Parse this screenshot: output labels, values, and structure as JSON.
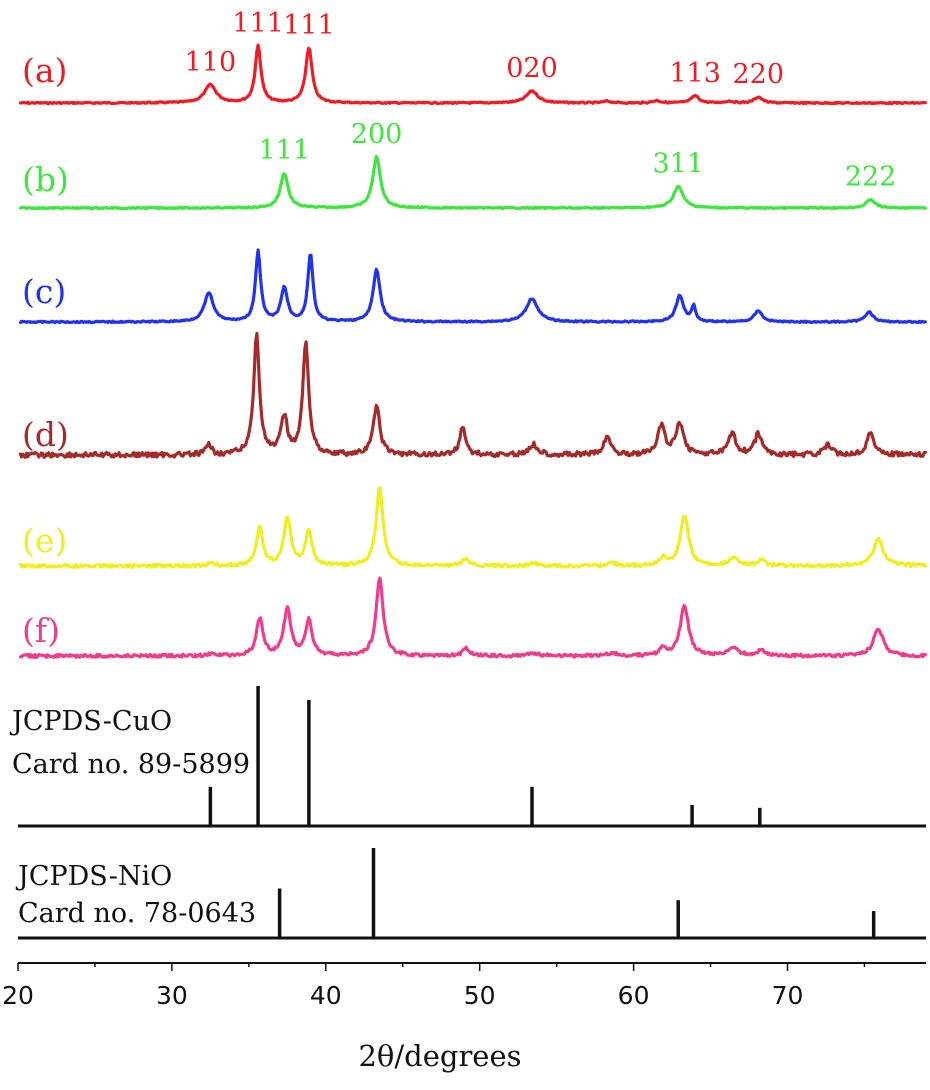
{
  "chart_data": {
    "type": "line",
    "title": "",
    "xlabel": "2θ/degrees",
    "ylabel": "",
    "xlim": [
      20,
      79
    ],
    "xticks": [
      20,
      30,
      40,
      50,
      60,
      70
    ],
    "grid": false,
    "series": [
      {
        "label": "(a)",
        "color": "#ee1c24",
        "peaks": [
          {
            "x": 32.5,
            "h": 0.3,
            "w": 0.9,
            "label": "110"
          },
          {
            "x": 35.6,
            "h": 0.95,
            "w": 0.45,
            "label": "111"
          },
          {
            "x": 38.9,
            "h": 0.92,
            "w": 0.5,
            "label": "111"
          },
          {
            "x": 53.4,
            "h": 0.2,
            "w": 0.9,
            "label": "020"
          },
          {
            "x": 58.3,
            "h": 0.03,
            "w": 0.6
          },
          {
            "x": 61.5,
            "h": 0.04,
            "w": 0.6
          },
          {
            "x": 66.2,
            "h": 0.03,
            "w": 0.6
          },
          {
            "x": 64.0,
            "h": 0.12,
            "w": 0.6,
            "label": "113"
          },
          {
            "x": 68.1,
            "h": 0.1,
            "w": 0.6,
            "label": "220"
          }
        ]
      },
      {
        "label": "(b)",
        "color": "#3ee63e",
        "peaks": [
          {
            "x": 37.3,
            "h": 0.58,
            "w": 0.6,
            "label": "111"
          },
          {
            "x": 43.3,
            "h": 0.85,
            "w": 0.6,
            "label": "200"
          },
          {
            "x": 62.9,
            "h": 0.36,
            "w": 0.75,
            "label": "311"
          },
          {
            "x": 75.4,
            "h": 0.14,
            "w": 0.7,
            "label": "222"
          }
        ]
      },
      {
        "label": "(c)",
        "color": "#2233ee",
        "peaks": [
          {
            "x": 32.4,
            "h": 0.55,
            "w": 0.7
          },
          {
            "x": 35.6,
            "h": 1.35,
            "w": 0.4
          },
          {
            "x": 37.3,
            "h": 0.65,
            "w": 0.5
          },
          {
            "x": 39.0,
            "h": 1.3,
            "w": 0.4
          },
          {
            "x": 43.3,
            "h": 1.0,
            "w": 0.55
          },
          {
            "x": 53.4,
            "h": 0.45,
            "w": 0.9
          },
          {
            "x": 63.0,
            "h": 0.5,
            "w": 0.6
          },
          {
            "x": 63.9,
            "h": 0.3,
            "w": 0.3
          },
          {
            "x": 68.1,
            "h": 0.22,
            "w": 0.6
          },
          {
            "x": 75.3,
            "h": 0.2,
            "w": 0.6
          }
        ]
      },
      {
        "label": "(d)",
        "color": "#a52a2a",
        "peaks": [
          {
            "x": 32.4,
            "h": 0.2,
            "w": 0.4
          },
          {
            "x": 35.5,
            "h": 2.3,
            "w": 0.45
          },
          {
            "x": 37.3,
            "h": 0.7,
            "w": 0.5
          },
          {
            "x": 38.7,
            "h": 2.18,
            "w": 0.45
          },
          {
            "x": 43.3,
            "h": 0.95,
            "w": 0.5
          },
          {
            "x": 48.9,
            "h": 0.55,
            "w": 0.45
          },
          {
            "x": 53.5,
            "h": 0.2,
            "w": 0.7
          },
          {
            "x": 58.3,
            "h": 0.35,
            "w": 0.55
          },
          {
            "x": 61.8,
            "h": 0.55,
            "w": 0.55
          },
          {
            "x": 63.0,
            "h": 0.6,
            "w": 0.6
          },
          {
            "x": 66.4,
            "h": 0.4,
            "w": 0.6
          },
          {
            "x": 68.1,
            "h": 0.4,
            "w": 0.55
          },
          {
            "x": 72.6,
            "h": 0.18,
            "w": 0.6
          },
          {
            "x": 75.4,
            "h": 0.42,
            "w": 0.6
          }
        ]
      },
      {
        "label": "(e)",
        "color": "#eeee22",
        "peaks": [
          {
            "x": 32.6,
            "h": 0.05,
            "w": 0.5
          },
          {
            "x": 35.7,
            "h": 0.75,
            "w": 0.5
          },
          {
            "x": 37.5,
            "h": 0.95,
            "w": 0.55
          },
          {
            "x": 38.9,
            "h": 0.7,
            "w": 0.5
          },
          {
            "x": 43.5,
            "h": 1.55,
            "w": 0.55
          },
          {
            "x": 49.1,
            "h": 0.15,
            "w": 0.5
          },
          {
            "x": 53.5,
            "h": 0.05,
            "w": 0.8
          },
          {
            "x": 58.6,
            "h": 0.06,
            "w": 0.6
          },
          {
            "x": 61.9,
            "h": 0.15,
            "w": 0.5
          },
          {
            "x": 63.3,
            "h": 1.0,
            "w": 0.65
          },
          {
            "x": 66.5,
            "h": 0.15,
            "w": 0.8
          },
          {
            "x": 68.3,
            "h": 0.12,
            "w": 0.6
          },
          {
            "x": 75.9,
            "h": 0.55,
            "w": 0.75
          }
        ]
      },
      {
        "label": "(f)",
        "color": "#ee3d8c",
        "peaks": [
          {
            "x": 32.6,
            "h": 0.05,
            "w": 0.5
          },
          {
            "x": 35.7,
            "h": 0.75,
            "w": 0.5
          },
          {
            "x": 37.5,
            "h": 0.95,
            "w": 0.55
          },
          {
            "x": 38.9,
            "h": 0.7,
            "w": 0.5
          },
          {
            "x": 43.5,
            "h": 1.55,
            "w": 0.55
          },
          {
            "x": 49.1,
            "h": 0.15,
            "w": 0.5
          },
          {
            "x": 53.5,
            "h": 0.05,
            "w": 0.8
          },
          {
            "x": 58.6,
            "h": 0.06,
            "w": 0.6
          },
          {
            "x": 61.9,
            "h": 0.15,
            "w": 0.5
          },
          {
            "x": 63.3,
            "h": 1.0,
            "w": 0.65
          },
          {
            "x": 66.5,
            "h": 0.15,
            "w": 0.8
          },
          {
            "x": 68.3,
            "h": 0.12,
            "w": 0.6
          },
          {
            "x": 75.9,
            "h": 0.55,
            "w": 0.75
          }
        ]
      }
    ],
    "references": [
      {
        "name_line1": "JCPDS-CuO",
        "name_line2": "Card no. 89-5899",
        "sticks": [
          {
            "x": 32.5,
            "h": 0.28
          },
          {
            "x": 35.6,
            "h": 1.0
          },
          {
            "x": 38.9,
            "h": 0.9
          },
          {
            "x": 53.4,
            "h": 0.28
          },
          {
            "x": 63.8,
            "h": 0.15
          },
          {
            "x": 68.2,
            "h": 0.13
          }
        ]
      },
      {
        "name_line1": "JCPDS-NiO",
        "name_line2": "Card no. 78-0643",
        "sticks": [
          {
            "x": 37.0,
            "h": 0.55
          },
          {
            "x": 43.1,
            "h": 1.0
          },
          {
            "x": 62.9,
            "h": 0.42
          },
          {
            "x": 75.6,
            "h": 0.3
          }
        ]
      }
    ]
  }
}
